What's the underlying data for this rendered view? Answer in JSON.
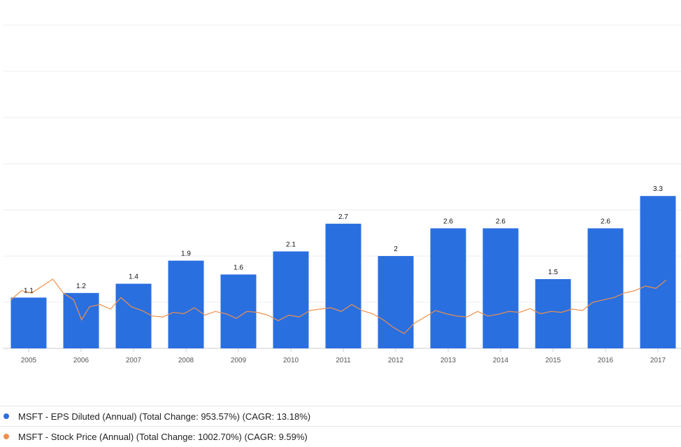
{
  "chart_data": {
    "type": "bar",
    "categories": [
      "2005",
      "2006",
      "2007",
      "2008",
      "2009",
      "2010",
      "2011",
      "2012",
      "2013",
      "2014",
      "2015",
      "2016",
      "2017"
    ],
    "series": [
      {
        "name": "MSFT - EPS Diluted (Annual)",
        "type": "bar",
        "values": [
          1.1,
          1.2,
          1.4,
          1.9,
          1.6,
          2.1,
          2.7,
          2,
          2.6,
          2.6,
          1.5,
          2.6,
          3.3
        ],
        "labels": [
          "1.1",
          "1.2",
          "1.4",
          "1.9",
          "1.6",
          "2.1",
          "2.7",
          "2",
          "2.6",
          "2.6",
          "1.5",
          "2.6",
          "3.3"
        ],
        "color": "#2a6fe0"
      },
      {
        "name": "MSFT - Stock Price (Annual)",
        "type": "line",
        "color": "#f0904a",
        "x": [
          2005.0,
          2005.2,
          2005.4,
          2005.6,
          2005.8,
          2006.0,
          2006.2,
          2006.35,
          2006.5,
          2006.7,
          2006.9,
          2007.1,
          2007.3,
          2007.5,
          2007.7,
          2007.9,
          2008.1,
          2008.3,
          2008.5,
          2008.7,
          2008.9,
          2009.1,
          2009.3,
          2009.5,
          2009.7,
          2009.9,
          2010.1,
          2010.3,
          2010.5,
          2010.7,
          2010.9,
          2011.1,
          2011.3,
          2011.5,
          2011.7,
          2011.9,
          2012.1,
          2012.3,
          2012.5,
          2012.7,
          2012.9,
          2013.1,
          2013.3,
          2013.5,
          2013.7,
          2013.9,
          2014.1,
          2014.3,
          2014.5,
          2014.7,
          2014.9,
          2015.1,
          2015.3,
          2015.5,
          2015.7,
          2015.9,
          2016.1,
          2016.3,
          2016.5,
          2016.7,
          2016.9,
          2017.1,
          2017.3,
          2017.5
        ],
        "values": [
          1.05,
          1.25,
          1.2,
          1.35,
          1.5,
          1.2,
          1.05,
          0.62,
          0.9,
          0.95,
          0.85,
          1.1,
          0.9,
          0.82,
          0.7,
          0.68,
          0.78,
          0.75,
          0.88,
          0.72,
          0.8,
          0.75,
          0.65,
          0.8,
          0.78,
          0.72,
          0.6,
          0.72,
          0.68,
          0.82,
          0.85,
          0.88,
          0.8,
          0.95,
          0.82,
          0.75,
          0.62,
          0.45,
          0.32,
          0.55,
          0.68,
          0.82,
          0.75,
          0.7,
          0.68,
          0.8,
          0.7,
          0.74,
          0.8,
          0.78,
          0.86,
          0.75,
          0.8,
          0.78,
          0.85,
          0.82,
          1.0,
          1.05,
          1.1,
          1.2,
          1.25,
          1.35,
          1.3,
          1.48
        ]
      }
    ],
    "ylim": [
      0,
      7
    ],
    "grid": true,
    "legend_position": "bottom"
  },
  "legend": [
    {
      "text": "MSFT - EPS Diluted (Annual) (Total Change: 953.57%) (CAGR: 13.18%)",
      "color": "#2a6fe0"
    },
    {
      "text": "MSFT - Stock Price (Annual) (Total Change: 1002.70%) (CAGR: 9.59%)",
      "color": "#f0904a"
    }
  ]
}
